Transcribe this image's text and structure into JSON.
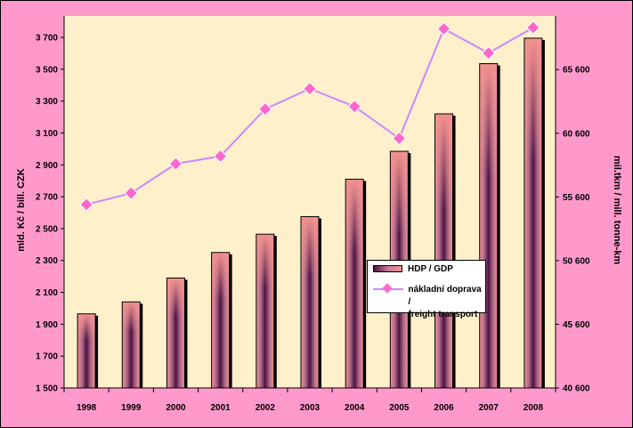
{
  "chart_data": {
    "type": "bar+line",
    "categories": [
      "1998",
      "1999",
      "2000",
      "2001",
      "2002",
      "2003",
      "2004",
      "2005",
      "2006",
      "2007",
      "2008"
    ],
    "series": [
      {
        "name": "HDP / GDP",
        "type": "bar",
        "axis": "left",
        "values": [
          1965,
          2040,
          2190,
          2350,
          2465,
          2575,
          2810,
          2985,
          3220,
          3535,
          3695
        ]
      },
      {
        "name": "nákladní doprava / freight transport",
        "type": "line",
        "axis": "right",
        "values": [
          55000,
          55900,
          58200,
          58800,
          62500,
          64100,
          62700,
          60200,
          68800,
          66900,
          68900
        ]
      }
    ],
    "ylabel_left": "mld. Kč / bill. CZK",
    "ylabel_right": "mil.tkm / mill. tonne-km",
    "ylim_left": [
      1500,
      3700
    ],
    "ylim_right": [
      40600,
      68900
    ],
    "yticks_left": [
      "1 500",
      "1 700",
      "1 900",
      "2 100",
      "2 300",
      "2 500",
      "2 700",
      "2 900",
      "3 100",
      "3 300",
      "3 500",
      "3 700"
    ],
    "yticks_right": [
      "40 600",
      "45 600",
      "50 600",
      "55 600",
      "60 600",
      "65 600"
    ],
    "legend_position": "center-right",
    "colors": {
      "bar_dark": "#4d1240",
      "bar_light": "#f29290",
      "line": "#cc88ff",
      "marker": "#ff66cc",
      "plot_bg": "#fff0cc",
      "page_bg": "#ff99cc"
    }
  },
  "legend": {
    "bar_label": "HDP / GDP",
    "line_label_1": "nákladní doprava /",
    "line_label_2": "freight transport"
  }
}
